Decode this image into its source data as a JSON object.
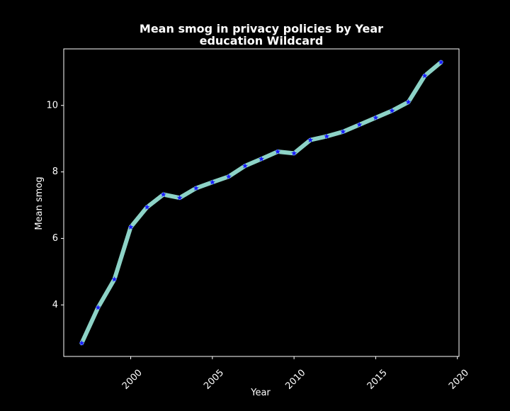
{
  "colors": {
    "background": "#000000",
    "axes": "#ffffff",
    "text": "#ffffff",
    "line": "#8dd3c7",
    "marker": "#1a1aff"
  },
  "chart_data": {
    "type": "line",
    "title_line1": "Mean smog in privacy policies by Year",
    "title_line2": "education Wildcard",
    "xlabel": "Year",
    "ylabel": "Mean smog",
    "xlim": [
      1995.9,
      2020.1
    ],
    "ylim": [
      2.45,
      11.7
    ],
    "xticks": [
      2000,
      2005,
      2010,
      2015,
      2020
    ],
    "yticks": [
      4,
      6,
      8,
      10
    ],
    "grid": false,
    "legend": "none",
    "line_style": "thick line with star markers",
    "x": [
      1997,
      1998,
      1999,
      2000,
      2001,
      2002,
      2003,
      2004,
      2005,
      2006,
      2007,
      2008,
      2009,
      2010,
      2011,
      2012,
      2013,
      2014,
      2015,
      2016,
      2017,
      2018,
      2019
    ],
    "values": [
      2.85,
      3.92,
      4.77,
      6.34,
      6.94,
      7.32,
      7.22,
      7.51,
      7.69,
      7.86,
      8.18,
      8.39,
      8.61,
      8.56,
      8.96,
      9.07,
      9.21,
      9.42,
      9.63,
      9.84,
      10.1,
      10.89,
      11.3
    ]
  }
}
